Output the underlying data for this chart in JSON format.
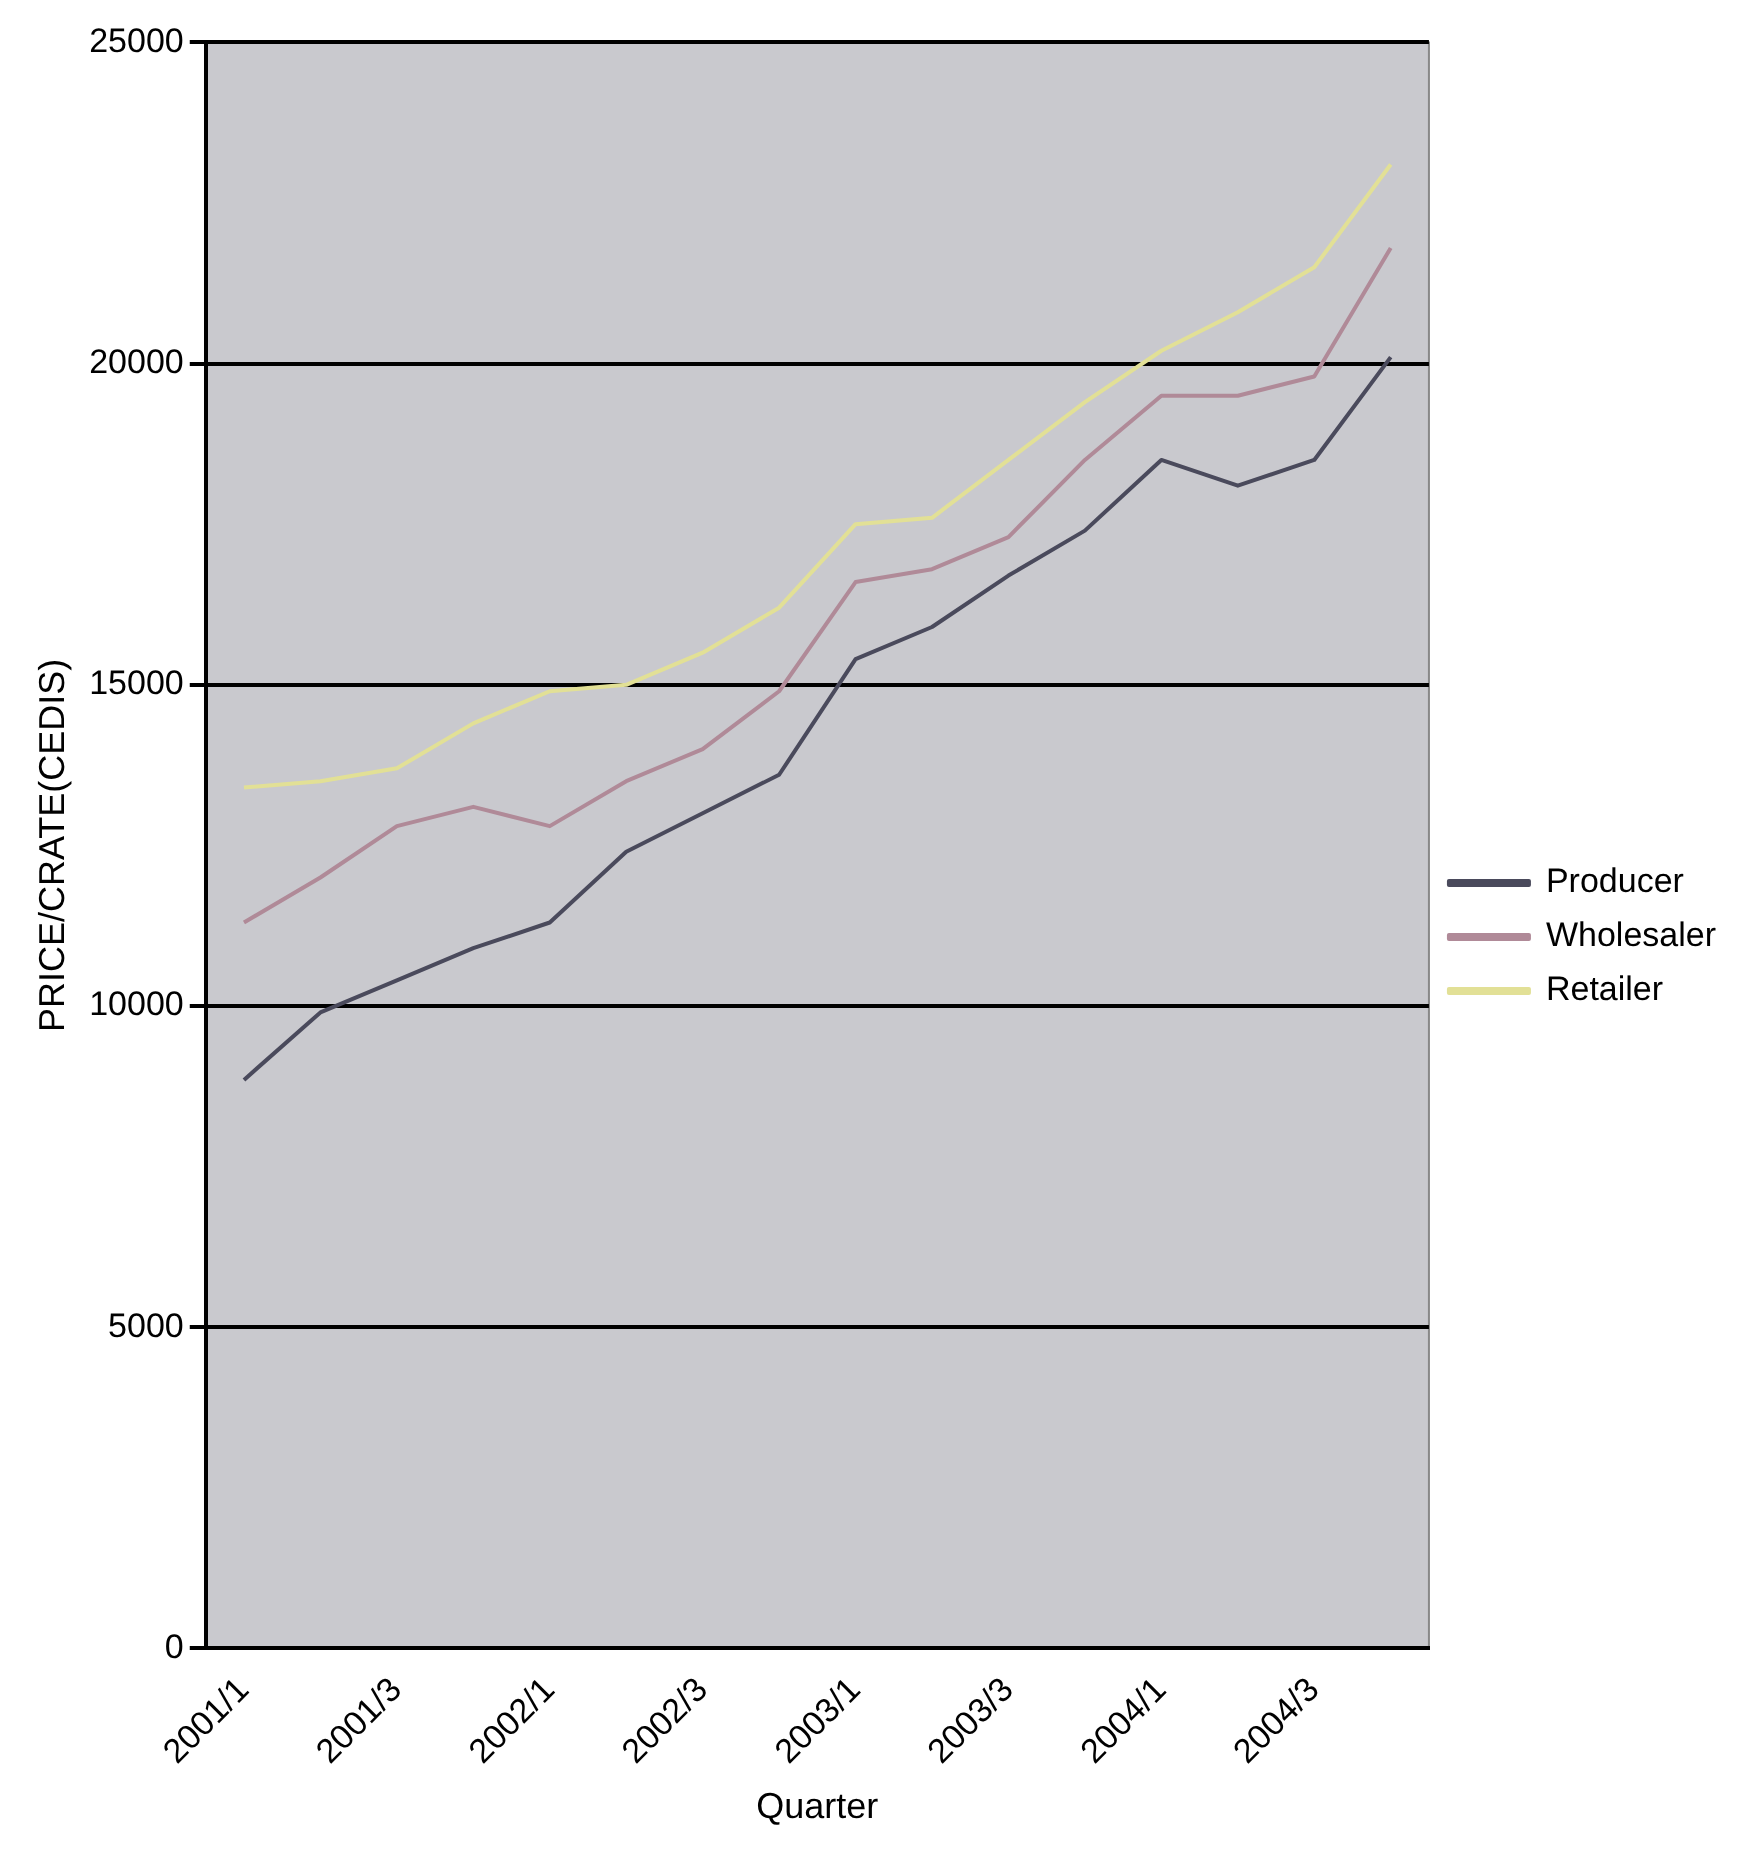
{
  "chart_data": {
    "type": "line",
    "xlabel": "Quarter",
    "ylabel": "PRICE/CRATE(CEDIS)",
    "categories": [
      "2001/1",
      null,
      "2001/3",
      null,
      "2002/1",
      null,
      "2002/3",
      null,
      "2003/1",
      null,
      "2003/3",
      null,
      "2004/1",
      null,
      "2004/3",
      null
    ],
    "series": [
      {
        "name": "Producer",
        "color": "#4a4a5c",
        "values": [
          8850,
          9900,
          10400,
          10900,
          11300,
          12400,
          13000,
          13600,
          15400,
          15900,
          16700,
          17400,
          18500,
          18100,
          18500,
          20100
        ]
      },
      {
        "name": "Wholesaler",
        "color": "#b08a98",
        "values": [
          11300,
          12000,
          12800,
          13100,
          12800,
          13500,
          14000,
          14900,
          16600,
          16800,
          17300,
          18500,
          19500,
          19500,
          19800,
          21800
        ]
      },
      {
        "name": "Retailer",
        "color": "#e2e096",
        "values": [
          13400,
          13500,
          13700,
          14400,
          14900,
          15000,
          15500,
          16200,
          17500,
          17600,
          18500,
          19400,
          20200,
          20800,
          21500,
          23100
        ]
      }
    ],
    "ylim": [
      0,
      25000
    ],
    "yticks": [
      0,
      5000,
      10000,
      15000,
      20000,
      25000
    ],
    "grid": "y",
    "legend": "right",
    "marker": "none",
    "line_style": "solid"
  }
}
